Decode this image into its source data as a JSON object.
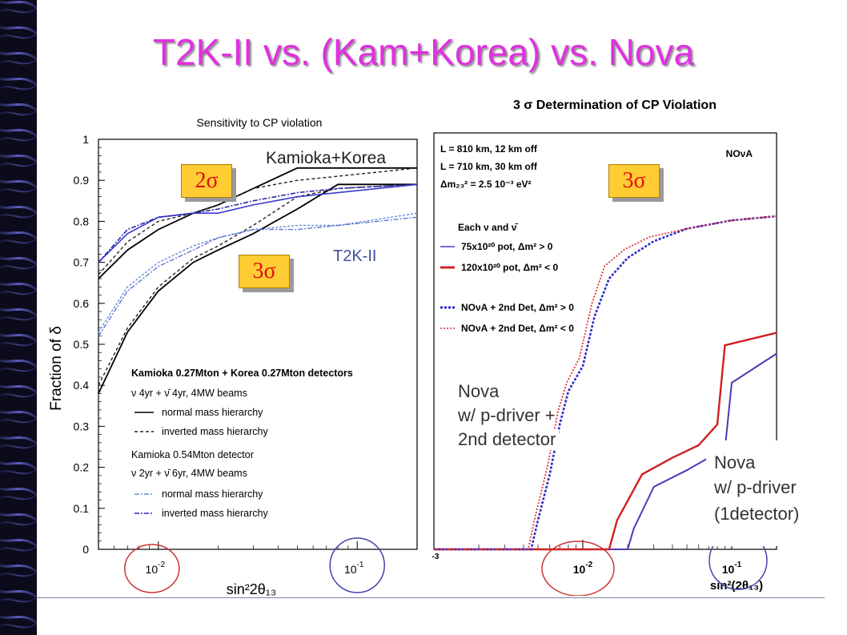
{
  "slide": {
    "title": "T2K-II vs. (Kam+Korea) vs. Nova"
  },
  "chart_data": [
    {
      "type": "line",
      "title": "Sensitivity to CP violation",
      "xlabel": "sin²2θ₁₃",
      "ylabel": "Fraction of δ",
      "xscale": "log",
      "xlim": [
        0.005,
        0.2
      ],
      "ylim": [
        0,
        1
      ],
      "xticks": [
        "10-2",
        "10-1"
      ],
      "yticks": [
        "0",
        "0.1",
        "0.2",
        "0.3",
        "0.4",
        "0.5",
        "0.6",
        "0.7",
        "0.8",
        "0.9",
        "1"
      ],
      "annotations": [
        "Kamioka+Korea",
        "T2K-II",
        "2σ",
        "3σ"
      ],
      "legend": {
        "group1_title": "Kamioka 0.27Mton + Korea 0.27Mton detectors",
        "group1_beam": "ν 4yr + ν̄ 4yr, 4MW beams",
        "group2_title": "Kamioka 0.54Mton detector",
        "group2_beam": "ν 2yr + ν̄ 6yr, 4MW beams",
        "entries": [
          "normal mass hierarchy",
          "inverted mass hierarchy",
          "normal mass hierarchy",
          "inverted mass hierarchy"
        ]
      },
      "series": [
        {
          "name": "normal mass hierarchy",
          "group": "Kamioka+Korea 2σ",
          "color": "#000000",
          "x": [
            0.005,
            0.007,
            0.01,
            0.015,
            0.02,
            0.03,
            0.05,
            0.08,
            0.2
          ],
          "y": [
            0.66,
            0.73,
            0.78,
            0.82,
            0.84,
            0.88,
            0.93,
            0.93,
            0.93
          ]
        },
        {
          "name": "inverted mass hierarchy",
          "group": "Kamioka+Korea 2σ",
          "color": "#222222",
          "x": [
            0.005,
            0.007,
            0.01,
            0.015,
            0.02,
            0.03,
            0.05,
            0.08,
            0.2
          ],
          "y": [
            0.67,
            0.75,
            0.8,
            0.82,
            0.84,
            0.88,
            0.9,
            0.91,
            0.93
          ]
        },
        {
          "name": "normal mass hierarchy",
          "group": "Kamioka+Korea 3σ",
          "color": "#000000",
          "x": [
            0.005,
            0.007,
            0.01,
            0.015,
            0.02,
            0.03,
            0.05,
            0.08,
            0.2
          ],
          "y": [
            0.38,
            0.53,
            0.63,
            0.7,
            0.73,
            0.77,
            0.83,
            0.89,
            0.89
          ]
        },
        {
          "name": "inverted mass hierarchy",
          "group": "Kamioka+Korea 3σ",
          "color": "#222222",
          "x": [
            0.005,
            0.007,
            0.01,
            0.015,
            0.02,
            0.03,
            0.05,
            0.08,
            0.2
          ],
          "y": [
            0.4,
            0.54,
            0.64,
            0.71,
            0.74,
            0.79,
            0.86,
            0.88,
            0.89
          ]
        },
        {
          "name": "normal mass hierarchy",
          "group": "T2K-II 2σ",
          "color": "#3a3acc",
          "x": [
            0.005,
            0.007,
            0.01,
            0.015,
            0.02,
            0.03,
            0.05,
            0.08,
            0.2
          ],
          "y": [
            0.7,
            0.77,
            0.81,
            0.82,
            0.82,
            0.84,
            0.86,
            0.87,
            0.89
          ]
        },
        {
          "name": "inverted mass hierarchy",
          "group": "T2K-II 2σ",
          "color": "#2a2aaa",
          "x": [
            0.005,
            0.007,
            0.01,
            0.015,
            0.02,
            0.03,
            0.05,
            0.08,
            0.2
          ],
          "y": [
            0.7,
            0.78,
            0.81,
            0.82,
            0.83,
            0.85,
            0.87,
            0.88,
            0.89
          ]
        },
        {
          "name": "normal mass hierarchy",
          "group": "T2K-II 3σ",
          "color": "#6a8ae0",
          "x": [
            0.005,
            0.007,
            0.01,
            0.015,
            0.02,
            0.03,
            0.05,
            0.08,
            0.2
          ],
          "y": [
            0.53,
            0.64,
            0.7,
            0.74,
            0.76,
            0.78,
            0.79,
            0.79,
            0.82
          ]
        },
        {
          "name": "inverted mass hierarchy",
          "group": "T2K-II 3σ",
          "color": "#5a78d0",
          "x": [
            0.005,
            0.007,
            0.01,
            0.015,
            0.02,
            0.03,
            0.05,
            0.08,
            0.2
          ],
          "y": [
            0.52,
            0.63,
            0.69,
            0.73,
            0.76,
            0.78,
            0.78,
            0.79,
            0.81
          ]
        }
      ]
    },
    {
      "type": "line",
      "title": "3 σ Determination of CP Violation",
      "xlabel": "sin²(2θ₁₃)",
      "xscale": "log",
      "xlim": [
        0.001,
        0.2
      ],
      "ylim": [
        0,
        1
      ],
      "xticks": [
        "-3",
        "10-2",
        "10-1"
      ],
      "corner_label": "NOνA",
      "info": [
        "L = 810 km, 12 km off",
        "L = 710 km, 30 km off",
        "Δm₂₃² = 2.5 10⁻³ eV²"
      ],
      "annotations": [
        "3σ",
        "Nova",
        "w/ p-driver +",
        "2nd detector",
        "Nova",
        "w/ p-driver",
        "(1detector)"
      ],
      "legend": {
        "header": "Each ν and ν̄",
        "entries": [
          "75x10²⁰ pot, Δm² > 0",
          "120x10²⁰ pot, Δm² < 0",
          "NOνA + 2nd Det, Δm² > 0",
          "NOνA + 2nd Det, Δm² < 0"
        ]
      },
      "series": [
        {
          "name": "75x10²⁰ pot, Δm² > 0",
          "color": "#4a3ab8",
          "x": [
            0.001,
            0.02,
            0.022,
            0.03,
            0.05,
            0.07,
            0.09,
            0.1,
            0.2
          ],
          "y": [
            0,
            0,
            0.05,
            0.15,
            0.19,
            0.22,
            0.24,
            0.4,
            0.47
          ]
        },
        {
          "name": "120x10²⁰ pot, Δm² < 0",
          "color": "#d02020",
          "x": [
            0.001,
            0.015,
            0.017,
            0.025,
            0.04,
            0.06,
            0.08,
            0.09,
            0.2
          ],
          "y": [
            0,
            0,
            0.07,
            0.18,
            0.22,
            0.25,
            0.3,
            0.49,
            0.52
          ]
        },
        {
          "name": "NOνA + 2nd Det, Δm² > 0",
          "color": "#2a2acc",
          "x": [
            0.001,
            0.0045,
            0.005,
            0.006,
            0.007,
            0.008,
            0.01,
            0.012,
            0.015,
            0.02,
            0.03,
            0.05,
            0.1,
            0.2
          ],
          "y": [
            0,
            0,
            0.07,
            0.18,
            0.3,
            0.38,
            0.44,
            0.56,
            0.65,
            0.7,
            0.74,
            0.77,
            0.79,
            0.8
          ]
        },
        {
          "name": "NOνA + 2nd Det, Δm² < 0",
          "color": "#e03030",
          "x": [
            0.001,
            0.0043,
            0.0048,
            0.0058,
            0.0068,
            0.0078,
            0.0095,
            0.0115,
            0.014,
            0.019,
            0.028,
            0.05,
            0.1,
            0.2
          ],
          "y": [
            0,
            0,
            0.08,
            0.2,
            0.33,
            0.4,
            0.46,
            0.59,
            0.68,
            0.72,
            0.75,
            0.77,
            0.79,
            0.8
          ]
        }
      ]
    }
  ]
}
